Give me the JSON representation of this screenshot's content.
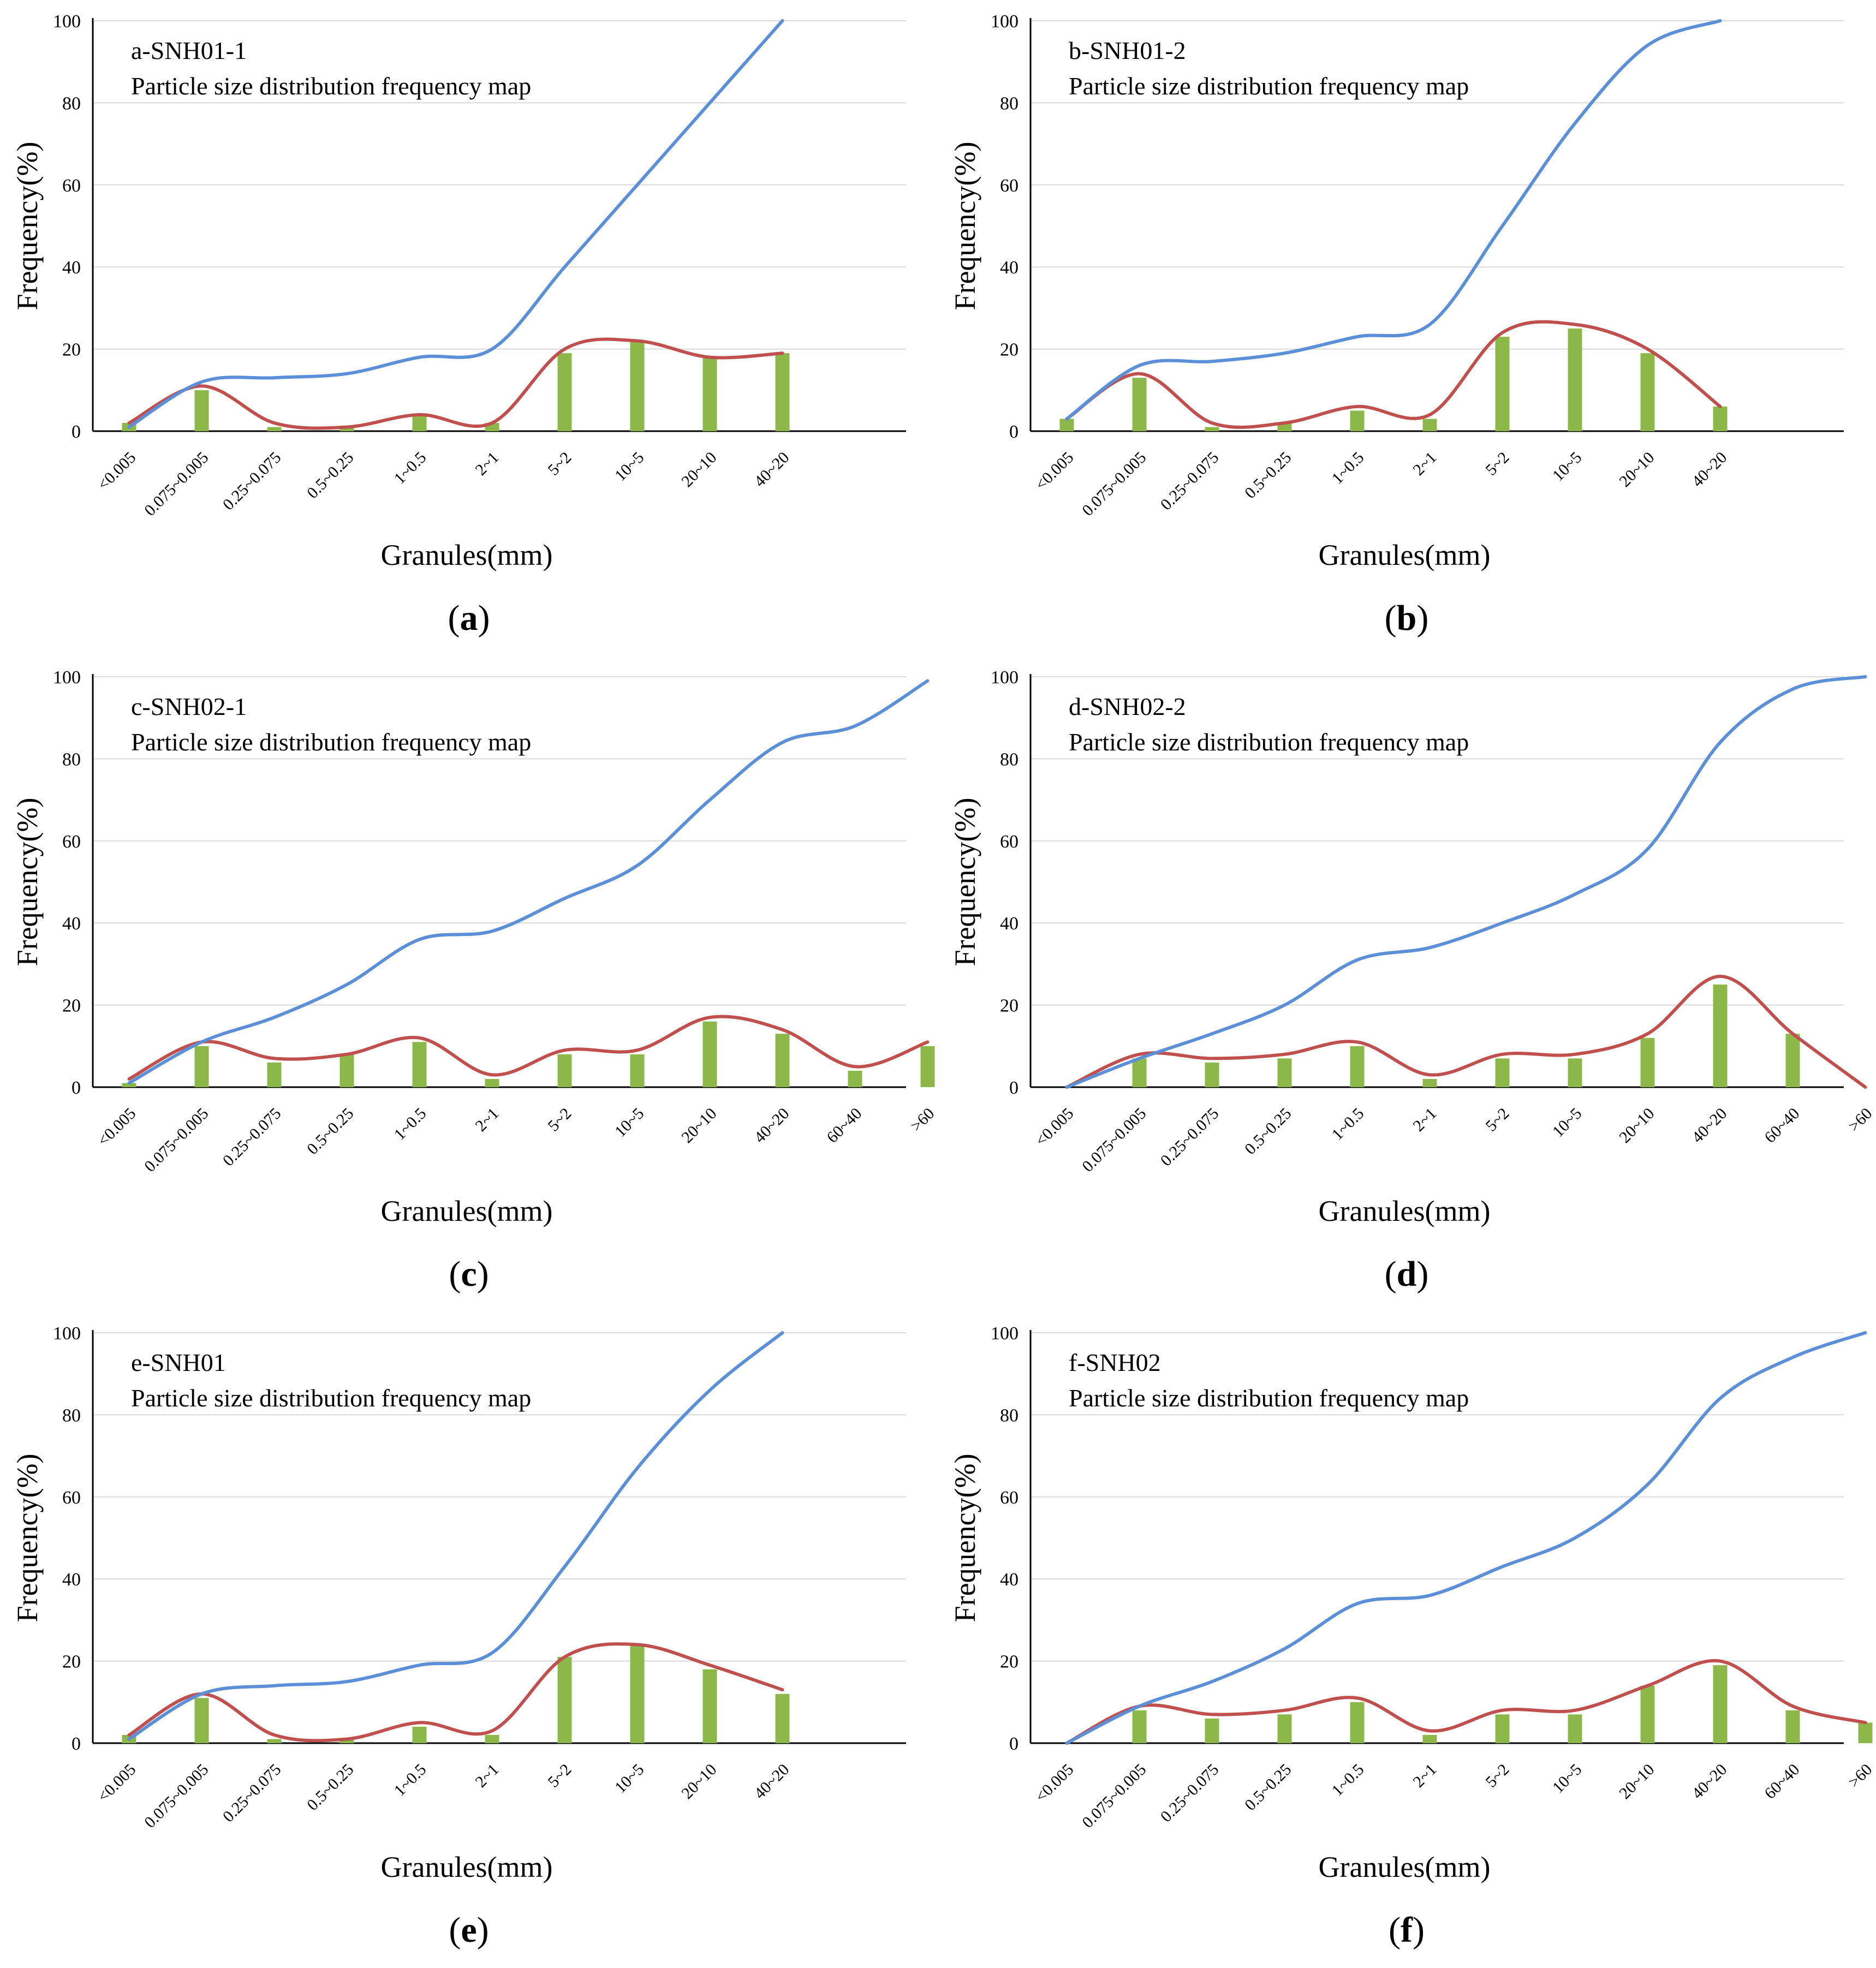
{
  "colors": {
    "cumulative_line": "#5B8FD8",
    "frequency_curve": "#C0504D",
    "bars": "#8CB84A",
    "grid": "#D9D9D9",
    "axis": "#000000",
    "text": "#000000"
  },
  "chart_data": [
    {
      "type": "bar",
      "label": "a",
      "title": "a-SNH01-1",
      "subtitle": "Particle size distribution frequency map",
      "xlabel": "Granules(mm)",
      "ylabel": "Frequency(%)",
      "ylim": [
        0,
        100
      ],
      "yticks": [
        0,
        20,
        40,
        60,
        80,
        100
      ],
      "grid": true,
      "categories": [
        "<0.005",
        "0.075~0.005",
        "0.25~0.075",
        "0.5~0.25",
        "1~0.5",
        "2~1",
        "5~2",
        "10~5",
        "20~10",
        "40~20"
      ],
      "series": [
        {
          "name": "frequency",
          "type": "bar",
          "values": [
            2,
            10,
            1,
            1,
            4,
            2,
            19,
            22,
            18,
            19
          ]
        },
        {
          "name": "frequency-curve",
          "type": "smooth-line",
          "values": [
            2,
            11,
            2,
            1,
            4,
            2,
            20,
            22,
            18,
            19
          ]
        },
        {
          "name": "cumulative",
          "type": "smooth-line",
          "values": [
            1,
            12,
            13,
            14,
            18,
            20,
            40,
            60,
            80,
            100
          ]
        }
      ]
    },
    {
      "type": "bar",
      "label": "b",
      "title": "b-SNH01-2",
      "subtitle": "Particle size distribution frequency map",
      "xlabel": "Granules(mm)",
      "ylabel": "Frequency(%)",
      "ylim": [
        0,
        100
      ],
      "yticks": [
        0,
        20,
        40,
        60,
        80,
        100
      ],
      "grid": true,
      "categories": [
        "<0.005",
        "0.075~0.005",
        "0.25~0.075",
        "0.5~0.25",
        "1~0.5",
        "2~1",
        "5~2",
        "10~5",
        "20~10",
        "40~20"
      ],
      "series": [
        {
          "name": "frequency",
          "type": "bar",
          "values": [
            3,
            13,
            1,
            2,
            5,
            3,
            23,
            25,
            19,
            6
          ]
        },
        {
          "name": "frequency-curve",
          "type": "smooth-line",
          "values": [
            3,
            14,
            2,
            2,
            6,
            4,
            24,
            26,
            20,
            6
          ]
        },
        {
          "name": "cumulative",
          "type": "smooth-line",
          "values": [
            3,
            16,
            17,
            19,
            23,
            26,
            50,
            75,
            94,
            100
          ]
        }
      ]
    },
    {
      "type": "bar",
      "label": "c",
      "title": "c-SNH02-1",
      "subtitle": "Particle size distribution frequency map",
      "xlabel": "Granules(mm)",
      "ylabel": "Frequency(%)",
      "ylim": [
        0,
        100
      ],
      "yticks": [
        0,
        20,
        40,
        60,
        80,
        100
      ],
      "grid": true,
      "categories": [
        "<0.005",
        "0.075~0.005",
        "0.25~0.075",
        "0.5~0.25",
        "1~0.5",
        "2~1",
        "5~2",
        "10~5",
        "20~10",
        "40~20",
        "60~40",
        ">60"
      ],
      "series": [
        {
          "name": "frequency",
          "type": "bar",
          "values": [
            1,
            10,
            6,
            8,
            11,
            2,
            8,
            8,
            16,
            13,
            4,
            10
          ]
        },
        {
          "name": "frequency-curve",
          "type": "smooth-line",
          "values": [
            2,
            11,
            7,
            8,
            12,
            3,
            9,
            9,
            17,
            14,
            5,
            11
          ]
        },
        {
          "name": "cumulative",
          "type": "smooth-line",
          "values": [
            1,
            11,
            17,
            25,
            36,
            38,
            46,
            54,
            70,
            84,
            88,
            99
          ]
        }
      ]
    },
    {
      "type": "bar",
      "label": "d",
      "title": "d-SNH02-2",
      "subtitle": "Particle size distribution frequency map",
      "xlabel": "Granules(mm)",
      "ylabel": "Frequency(%)",
      "ylim": [
        0,
        100
      ],
      "yticks": [
        0,
        20,
        40,
        60,
        80,
        100
      ],
      "grid": true,
      "categories": [
        "<0.005",
        "0.075~0.005",
        "0.25~0.075",
        "0.5~0.25",
        "1~0.5",
        "2~1",
        "5~2",
        "10~5",
        "20~10",
        "40~20",
        "60~40",
        ">60"
      ],
      "series": [
        {
          "name": "frequency",
          "type": "bar",
          "values": [
            0,
            7,
            6,
            7,
            10,
            2,
            7,
            7,
            12,
            25,
            13,
            0
          ]
        },
        {
          "name": "frequency-curve",
          "type": "smooth-line",
          "values": [
            0,
            8,
            7,
            8,
            11,
            3,
            8,
            8,
            13,
            27,
            13,
            0
          ]
        },
        {
          "name": "cumulative",
          "type": "smooth-line",
          "values": [
            0,
            7,
            13,
            20,
            31,
            34,
            40,
            47,
            58,
            84,
            97,
            100
          ]
        }
      ]
    },
    {
      "type": "bar",
      "label": "e",
      "title": "e-SNH01",
      "subtitle": "Particle size distribution frequency map",
      "xlabel": "Granules(mm)",
      "ylabel": "Frequency(%)",
      "ylim": [
        0,
        100
      ],
      "yticks": [
        0,
        20,
        40,
        60,
        80,
        100
      ],
      "grid": true,
      "categories": [
        "<0.005",
        "0.075~0.005",
        "0.25~0.075",
        "0.5~0.25",
        "1~0.5",
        "2~1",
        "5~2",
        "10~5",
        "20~10",
        "40~20"
      ],
      "series": [
        {
          "name": "frequency",
          "type": "bar",
          "values": [
            2,
            11,
            1,
            1,
            4,
            2,
            21,
            24,
            18,
            12
          ]
        },
        {
          "name": "frequency-curve",
          "type": "smooth-line",
          "values": [
            2,
            12,
            2,
            1,
            5,
            3,
            21,
            24,
            19,
            13
          ]
        },
        {
          "name": "cumulative",
          "type": "smooth-line",
          "values": [
            1,
            12,
            14,
            15,
            19,
            22,
            43,
            67,
            86,
            100
          ]
        }
      ]
    },
    {
      "type": "bar",
      "label": "f",
      "title": "f-SNH02",
      "subtitle": "Particle size distribution frequency map",
      "xlabel": "Granules(mm)",
      "ylabel": "Frequency(%)",
      "ylim": [
        0,
        100
      ],
      "yticks": [
        0,
        20,
        40,
        60,
        80,
        100
      ],
      "grid": true,
      "categories": [
        "<0.005",
        "0.075~0.005",
        "0.25~0.075",
        "0.5~0.25",
        "1~0.5",
        "2~1",
        "5~2",
        "10~5",
        "20~10",
        "40~20",
        "60~40",
        ">60"
      ],
      "series": [
        {
          "name": "frequency",
          "type": "bar",
          "values": [
            0,
            8,
            6,
            7,
            10,
            2,
            7,
            7,
            14,
            19,
            8,
            5
          ]
        },
        {
          "name": "frequency-curve",
          "type": "smooth-line",
          "values": [
            0,
            9,
            7,
            8,
            11,
            3,
            8,
            8,
            14,
            20,
            9,
            5
          ]
        },
        {
          "name": "cumulative",
          "type": "smooth-line",
          "values": [
            0,
            9,
            15,
            23,
            34,
            36,
            43,
            50,
            63,
            84,
            94,
            100
          ]
        }
      ]
    }
  ]
}
